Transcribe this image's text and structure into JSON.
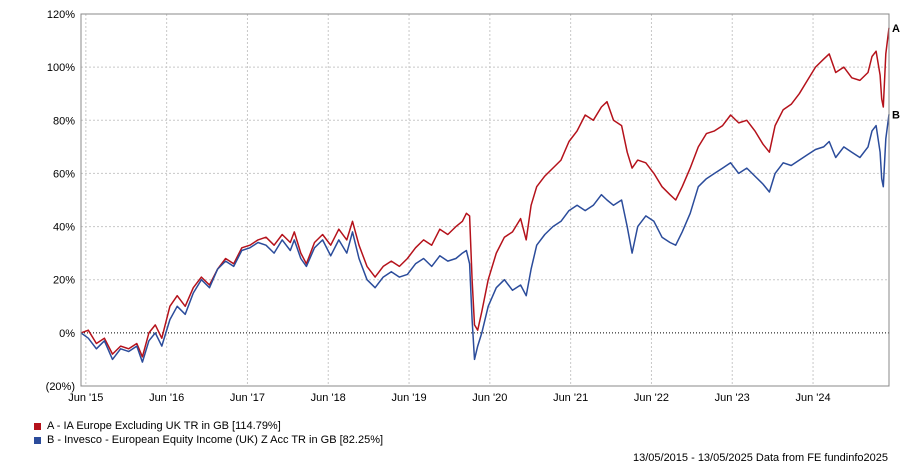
{
  "chart_data": {
    "type": "line",
    "ylim": [
      -20,
      120
    ],
    "yticks": [
      -20,
      0,
      20,
      40,
      60,
      80,
      100,
      120
    ],
    "ytick_labels": [
      "(20%)",
      "0%",
      "20%",
      "40%",
      "60%",
      "80%",
      "100%",
      "120%"
    ],
    "xlim": [
      2015.36,
      2025.36
    ],
    "xticks": [
      {
        "value": 2015.42,
        "label": "Jun '15"
      },
      {
        "value": 2016.42,
        "label": "Jun '16"
      },
      {
        "value": 2017.42,
        "label": "Jun '17"
      },
      {
        "value": 2018.42,
        "label": "Jun '18"
      },
      {
        "value": 2019.42,
        "label": "Jun '19"
      },
      {
        "value": 2020.42,
        "label": "Jun '20"
      },
      {
        "value": 2021.42,
        "label": "Jun '21"
      },
      {
        "value": 2022.42,
        "label": "Jun '22"
      },
      {
        "value": 2023.42,
        "label": "Jun '23"
      },
      {
        "value": 2024.42,
        "label": "Jun '24"
      }
    ],
    "grid": true,
    "legend_position": "bottom-left",
    "series": [
      {
        "name": "A - IA Europe Excluding UK TR in GB [114.79%]",
        "marker": "A",
        "color": "#b5121b",
        "points": [
          [
            2015.36,
            0
          ],
          [
            2015.45,
            1
          ],
          [
            2015.55,
            -4
          ],
          [
            2015.65,
            -2
          ],
          [
            2015.75,
            -8
          ],
          [
            2015.85,
            -5
          ],
          [
            2015.95,
            -6
          ],
          [
            2016.05,
            -4
          ],
          [
            2016.12,
            -9
          ],
          [
            2016.2,
            0
          ],
          [
            2016.28,
            3
          ],
          [
            2016.36,
            -2
          ],
          [
            2016.46,
            10
          ],
          [
            2016.55,
            14
          ],
          [
            2016.65,
            10
          ],
          [
            2016.75,
            17
          ],
          [
            2016.85,
            21
          ],
          [
            2016.95,
            18
          ],
          [
            2017.05,
            24
          ],
          [
            2017.15,
            28
          ],
          [
            2017.25,
            26
          ],
          [
            2017.35,
            32
          ],
          [
            2017.45,
            33
          ],
          [
            2017.55,
            35
          ],
          [
            2017.65,
            36
          ],
          [
            2017.75,
            33
          ],
          [
            2017.85,
            37
          ],
          [
            2017.95,
            34
          ],
          [
            2018.0,
            38
          ],
          [
            2018.08,
            30
          ],
          [
            2018.15,
            26
          ],
          [
            2018.25,
            34
          ],
          [
            2018.35,
            37
          ],
          [
            2018.45,
            33
          ],
          [
            2018.55,
            39
          ],
          [
            2018.65,
            35
          ],
          [
            2018.72,
            42
          ],
          [
            2018.8,
            33
          ],
          [
            2018.9,
            25
          ],
          [
            2019.0,
            21
          ],
          [
            2019.1,
            25
          ],
          [
            2019.2,
            27
          ],
          [
            2019.3,
            25
          ],
          [
            2019.4,
            28
          ],
          [
            2019.5,
            32
          ],
          [
            2019.6,
            35
          ],
          [
            2019.7,
            33
          ],
          [
            2019.8,
            39
          ],
          [
            2019.9,
            37
          ],
          [
            2020.0,
            40
          ],
          [
            2020.08,
            42
          ],
          [
            2020.13,
            45
          ],
          [
            2020.17,
            44
          ],
          [
            2020.2,
            20
          ],
          [
            2020.23,
            3
          ],
          [
            2020.27,
            1
          ],
          [
            2020.32,
            8
          ],
          [
            2020.4,
            20
          ],
          [
            2020.5,
            30
          ],
          [
            2020.6,
            36
          ],
          [
            2020.7,
            38
          ],
          [
            2020.8,
            43
          ],
          [
            2020.87,
            35
          ],
          [
            2020.93,
            48
          ],
          [
            2021.0,
            55
          ],
          [
            2021.1,
            59
          ],
          [
            2021.2,
            62
          ],
          [
            2021.3,
            65
          ],
          [
            2021.4,
            72
          ],
          [
            2021.5,
            76
          ],
          [
            2021.6,
            82
          ],
          [
            2021.7,
            80
          ],
          [
            2021.8,
            85
          ],
          [
            2021.87,
            87
          ],
          [
            2021.95,
            80
          ],
          [
            2022.05,
            78
          ],
          [
            2022.12,
            68
          ],
          [
            2022.18,
            62
          ],
          [
            2022.25,
            65
          ],
          [
            2022.35,
            64
          ],
          [
            2022.45,
            60
          ],
          [
            2022.55,
            55
          ],
          [
            2022.65,
            52
          ],
          [
            2022.72,
            50
          ],
          [
            2022.8,
            55
          ],
          [
            2022.9,
            62
          ],
          [
            2023.0,
            70
          ],
          [
            2023.1,
            75
          ],
          [
            2023.2,
            76
          ],
          [
            2023.3,
            78
          ],
          [
            2023.4,
            82
          ],
          [
            2023.5,
            79
          ],
          [
            2023.6,
            80
          ],
          [
            2023.7,
            76
          ],
          [
            2023.8,
            71
          ],
          [
            2023.88,
            68
          ],
          [
            2023.95,
            78
          ],
          [
            2024.05,
            84
          ],
          [
            2024.15,
            86
          ],
          [
            2024.25,
            90
          ],
          [
            2024.35,
            95
          ],
          [
            2024.45,
            100
          ],
          [
            2024.55,
            103
          ],
          [
            2024.62,
            105
          ],
          [
            2024.7,
            98
          ],
          [
            2024.8,
            100
          ],
          [
            2024.9,
            96
          ],
          [
            2025.0,
            95
          ],
          [
            2025.1,
            98
          ],
          [
            2025.15,
            104
          ],
          [
            2025.2,
            106
          ],
          [
            2025.25,
            97
          ],
          [
            2025.27,
            88
          ],
          [
            2025.29,
            85
          ],
          [
            2025.32,
            105
          ],
          [
            2025.36,
            114.79
          ]
        ]
      },
      {
        "name": "B - Invesco - European Equity Income (UK) Z Acc TR in GB [82.25%]",
        "marker": "B",
        "color": "#2b4c9b",
        "points": [
          [
            2015.36,
            0
          ],
          [
            2015.45,
            -2
          ],
          [
            2015.55,
            -6
          ],
          [
            2015.65,
            -3
          ],
          [
            2015.75,
            -10
          ],
          [
            2015.85,
            -6
          ],
          [
            2015.95,
            -7
          ],
          [
            2016.05,
            -5
          ],
          [
            2016.12,
            -11
          ],
          [
            2016.2,
            -3
          ],
          [
            2016.28,
            0
          ],
          [
            2016.36,
            -5
          ],
          [
            2016.46,
            5
          ],
          [
            2016.55,
            10
          ],
          [
            2016.65,
            7
          ],
          [
            2016.75,
            15
          ],
          [
            2016.85,
            20
          ],
          [
            2016.95,
            17
          ],
          [
            2017.05,
            24
          ],
          [
            2017.15,
            27
          ],
          [
            2017.25,
            25
          ],
          [
            2017.35,
            31
          ],
          [
            2017.45,
            32
          ],
          [
            2017.55,
            34
          ],
          [
            2017.65,
            33
          ],
          [
            2017.75,
            30
          ],
          [
            2017.85,
            35
          ],
          [
            2017.95,
            31
          ],
          [
            2018.0,
            35
          ],
          [
            2018.08,
            28
          ],
          [
            2018.15,
            25
          ],
          [
            2018.25,
            32
          ],
          [
            2018.35,
            35
          ],
          [
            2018.45,
            29
          ],
          [
            2018.55,
            35
          ],
          [
            2018.65,
            30
          ],
          [
            2018.72,
            38
          ],
          [
            2018.8,
            28
          ],
          [
            2018.9,
            20
          ],
          [
            2019.0,
            17
          ],
          [
            2019.1,
            21
          ],
          [
            2019.2,
            23
          ],
          [
            2019.3,
            21
          ],
          [
            2019.4,
            22
          ],
          [
            2019.5,
            26
          ],
          [
            2019.6,
            28
          ],
          [
            2019.7,
            25
          ],
          [
            2019.8,
            29
          ],
          [
            2019.9,
            27
          ],
          [
            2020.0,
            28
          ],
          [
            2020.08,
            30
          ],
          [
            2020.13,
            31
          ],
          [
            2020.17,
            26
          ],
          [
            2020.2,
            5
          ],
          [
            2020.23,
            -10
          ],
          [
            2020.27,
            -5
          ],
          [
            2020.32,
            0
          ],
          [
            2020.4,
            10
          ],
          [
            2020.5,
            17
          ],
          [
            2020.6,
            20
          ],
          [
            2020.7,
            16
          ],
          [
            2020.8,
            18
          ],
          [
            2020.87,
            14
          ],
          [
            2020.93,
            24
          ],
          [
            2021.0,
            33
          ],
          [
            2021.1,
            37
          ],
          [
            2021.2,
            40
          ],
          [
            2021.3,
            42
          ],
          [
            2021.4,
            46
          ],
          [
            2021.5,
            48
          ],
          [
            2021.6,
            46
          ],
          [
            2021.7,
            48
          ],
          [
            2021.8,
            52
          ],
          [
            2021.87,
            50
          ],
          [
            2021.95,
            48
          ],
          [
            2022.05,
            50
          ],
          [
            2022.12,
            40
          ],
          [
            2022.18,
            30
          ],
          [
            2022.25,
            40
          ],
          [
            2022.35,
            44
          ],
          [
            2022.45,
            42
          ],
          [
            2022.55,
            36
          ],
          [
            2022.65,
            34
          ],
          [
            2022.72,
            33
          ],
          [
            2022.8,
            38
          ],
          [
            2022.9,
            45
          ],
          [
            2023.0,
            55
          ],
          [
            2023.1,
            58
          ],
          [
            2023.2,
            60
          ],
          [
            2023.3,
            62
          ],
          [
            2023.4,
            64
          ],
          [
            2023.5,
            60
          ],
          [
            2023.6,
            62
          ],
          [
            2023.7,
            59
          ],
          [
            2023.8,
            56
          ],
          [
            2023.88,
            53
          ],
          [
            2023.95,
            60
          ],
          [
            2024.05,
            64
          ],
          [
            2024.15,
            63
          ],
          [
            2024.25,
            65
          ],
          [
            2024.35,
            67
          ],
          [
            2024.45,
            69
          ],
          [
            2024.55,
            70
          ],
          [
            2024.62,
            72
          ],
          [
            2024.7,
            66
          ],
          [
            2024.8,
            70
          ],
          [
            2024.9,
            68
          ],
          [
            2025.0,
            66
          ],
          [
            2025.1,
            70
          ],
          [
            2025.15,
            76
          ],
          [
            2025.2,
            78
          ],
          [
            2025.25,
            68
          ],
          [
            2025.27,
            58
          ],
          [
            2025.29,
            55
          ],
          [
            2025.32,
            73
          ],
          [
            2025.36,
            82.25
          ]
        ]
      }
    ]
  },
  "footer": {
    "text": "13/05/2015 - 13/05/2025 Data from FE fundinfo2025"
  }
}
